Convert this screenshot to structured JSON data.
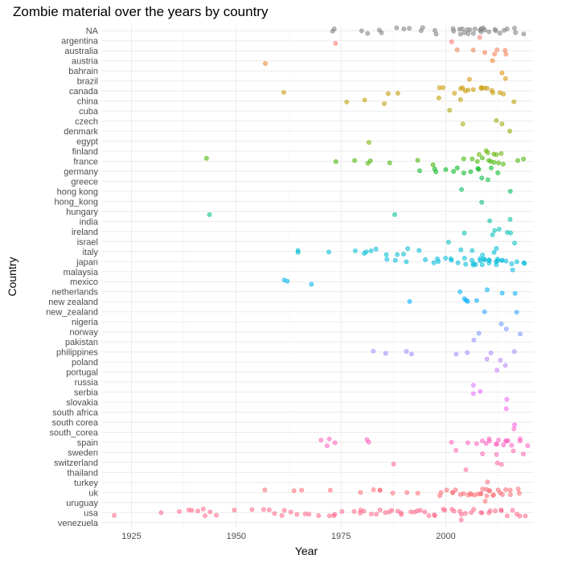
{
  "chart_data": {
    "type": "scatter",
    "title": "Zombie material over the years by country",
    "xlabel": "Year",
    "ylabel": "Country",
    "xlim": [
      1918,
      2021
    ],
    "xticks": [
      1925,
      1950,
      1975,
      2000
    ],
    "grid": true,
    "legend": "none",
    "categories": [
      "NA",
      "argentina",
      "australia",
      "austria",
      "bahrain",
      "brazil",
      "canada",
      "china",
      "cuba",
      "czech",
      "denmark",
      "egypt",
      "finland",
      "france",
      "germany",
      "greece",
      "hong kong",
      "hong_kong",
      "hungary",
      "india",
      "ireland",
      "israel",
      "italy",
      "japan",
      "malaysia",
      "mexico",
      "netherlands",
      "new zealand",
      "new_zealand",
      "nigeria",
      "norway",
      "pakistan",
      "philippines",
      "poland",
      "portugal",
      "russia",
      "serbia",
      "slovakia",
      "south africa",
      "south corea",
      "south_corea",
      "spain",
      "sweden",
      "switzerland",
      "thailand",
      "turkey",
      "uk",
      "uruguay",
      "usa",
      "venezuela"
    ],
    "colors": [
      "#808080",
      "#F8766D",
      "#F27D52",
      "#EA842F",
      "#E18A00",
      "#D59100",
      "#C99800",
      "#BC9D00",
      "#AEA200",
      "#9FA700",
      "#8FAB00",
      "#7CAE00",
      "#63B200",
      "#45B500",
      "#00B81F",
      "#00BA42",
      "#00BC5E",
      "#00BE76",
      "#00BF8C",
      "#00C0A0",
      "#00C1B2",
      "#00C0C3",
      "#00BDD3",
      "#00BBDA",
      "#00B8E5",
      "#00B4EF",
      "#00B0F6",
      "#00ABFD",
      "#35A2FF",
      "#619CFF",
      "#7C98FF",
      "#9590FF",
      "#A88AFF",
      "#B983FF",
      "#C77CFF",
      "#D575FE",
      "#E16BF9",
      "#EB64F1",
      "#F35EE9",
      "#F95BDD",
      "#FD5ECF",
      "#FF61C3",
      "#FF64B4",
      "#FF67A4",
      "#FF6A95",
      "#FF6C83",
      "#FD6E76",
      "#FB7174",
      "#FF6A8B",
      "#FF6A8B"
    ],
    "points": [
      [
        "NA",
        [
          1973,
          1974,
          1980,
          1982,
          1984,
          1985,
          1988,
          1990,
          1991,
          1994,
          1995,
          1997,
          1998,
          2001,
          2002,
          2003,
          2004,
          2004,
          2005,
          2005,
          2006,
          2006,
          2007,
          2007,
          2008,
          2008,
          2009,
          2009,
          2010,
          2010,
          2011,
          2012,
          2013,
          2014,
          2015,
          2016,
          2017,
          2018
        ]
      ],
      [
        "argentina",
        [
          1973,
          2001,
          2008
        ]
      ],
      [
        "australia",
        [
          2003,
          2007,
          2009,
          2012,
          2013,
          2014,
          2015
        ]
      ],
      [
        "austria",
        [
          1957,
          2011
        ]
      ],
      [
        "bahrain",
        [
          2014
        ]
      ],
      [
        "brazil",
        [
          2005,
          2015
        ]
      ],
      [
        "canada",
        [
          1961,
          1986,
          1989,
          1999,
          2000,
          2002,
          2003,
          2004,
          2005,
          2006,
          2007,
          2008,
          2009,
          2009,
          2010,
          2011,
          2012,
          2013,
          2014
        ]
      ],
      [
        "china",
        [
          1976,
          1981,
          1986,
          1999,
          2004,
          2017
        ]
      ],
      [
        "cuba",
        [
          2001
        ]
      ],
      [
        "czech",
        [
          2004,
          2012,
          2014
        ]
      ],
      [
        "denmark",
        [
          2015
        ]
      ],
      [
        "egypt",
        [
          1981
        ]
      ],
      [
        "finland",
        [
          2008,
          2009,
          2010,
          2011,
          2012,
          2013
        ]
      ],
      [
        "france",
        [
          1943,
          1973,
          1978,
          1981,
          1982,
          1986,
          1994,
          1997,
          2004,
          2006,
          2008,
          2009,
          2010,
          2011,
          2012,
          2013,
          2014,
          2017,
          2018
        ]
      ],
      [
        "germany",
        [
          1994,
          1997,
          1998,
          2000,
          2002,
          2003,
          2005,
          2006,
          2007,
          2008,
          2011,
          2013
        ]
      ],
      [
        "greece",
        [
          2008,
          2010
        ]
      ],
      [
        "hong kong",
        [
          2004,
          2015
        ]
      ],
      [
        "hong_kong",
        [
          2009
        ]
      ],
      [
        "hungary",
        [
          1943,
          1988
        ]
      ],
      [
        "india",
        [
          2010,
          2016
        ]
      ],
      [
        "ireland",
        [
          2005,
          2011,
          2012,
          2013,
          2014,
          2015
        ]
      ],
      [
        "israel",
        [
          2001,
          2017
        ]
      ],
      [
        "italy",
        [
          1964,
          1965,
          1972,
          1979,
          1980,
          1981,
          1982,
          1984,
          1986,
          1988,
          1990,
          1991,
          1993,
          2004,
          2007,
          2009,
          2011,
          2012
        ]
      ],
      [
        "japan",
        [
          1986,
          1988,
          1991,
          1995,
          1997,
          1998,
          1999,
          2000,
          2001,
          2002,
          2003,
          2004,
          2005,
          2006,
          2006,
          2007,
          2007,
          2008,
          2008,
          2009,
          2009,
          2010,
          2010,
          2011,
          2011,
          2012,
          2012,
          2013,
          2013,
          2014,
          2014,
          2015,
          2016,
          2017,
          2018,
          2019
        ]
      ],
      [
        "malaysia",
        [
          2016
        ]
      ],
      [
        "mexico",
        [
          1961,
          1962,
          1968
        ]
      ],
      [
        "netherlands",
        [
          2004,
          2010,
          2013,
          2017
        ]
      ],
      [
        "new zealand",
        [
          1992,
          2004,
          2005,
          2006,
          2007
        ]
      ],
      [
        "new_zealand",
        [
          2010,
          2017
        ]
      ],
      [
        "nigeria",
        [
          2014
        ]
      ],
      [
        "norway",
        [
          2008,
          2014,
          2017
        ]
      ],
      [
        "pakistan",
        [
          2006
        ]
      ],
      [
        "philippines",
        [
          1983,
          1985,
          1990,
          1992,
          2003,
          2005,
          2011,
          2017
        ]
      ],
      [
        "poland",
        [
          2010,
          2013,
          2015
        ]
      ],
      [
        "portugal",
        [
          2012
        ]
      ],
      [
        "russia",
        [
          2007
        ]
      ],
      [
        "serbia",
        [
          2007,
          2008
        ]
      ],
      [
        "slovakia",
        [
          2014
        ]
      ],
      [
        "south africa",
        [
          2015
        ]
      ],
      [
        "south corea",
        [
          2016
        ]
      ],
      [
        "south_corea",
        [
          2016
        ]
      ],
      [
        "spain",
        [
          1971,
          1972,
          1973,
          1974,
          1981,
          1982,
          2002,
          2006,
          2007,
          2008,
          2009,
          2010,
          2011,
          2012,
          2012,
          2013,
          2013,
          2014,
          2014,
          2015,
          2016,
          2017,
          2018,
          2019
        ]
      ],
      [
        "sweden",
        [
          2002,
          2009,
          2012,
          2016,
          2018
        ]
      ],
      [
        "switzerland",
        [
          1987,
          2012,
          2014
        ]
      ],
      [
        "thailand",
        [
          2004
        ]
      ],
      [
        "turkey",
        [
          2010
        ]
      ],
      [
        "uk",
        [
          1957,
          1964,
          1966,
          1973,
          1980,
          1983,
          1984,
          1985,
          1988,
          1991,
          1994,
          1998,
          1999,
          2000,
          2001,
          2002,
          2003,
          2004,
          2004,
          2005,
          2006,
          2006,
          2007,
          2007,
          2008,
          2008,
          2009,
          2009,
          2010,
          2010,
          2011,
          2011,
          2012,
          2012,
          2013,
          2013,
          2014,
          2015,
          2016,
          2017,
          2018
        ]
      ],
      [
        "uruguay",
        [
          2010
        ]
      ],
      [
        "usa",
        [
          1921,
          1932,
          1936,
          1939,
          1940,
          1941,
          1942,
          1943,
          1944,
          1945,
          1950,
          1953,
          1956,
          1958,
          1959,
          1961,
          1962,
          1963,
          1964,
          1966,
          1968,
          1970,
          1972,
          1973,
          1974,
          1976,
          1978,
          1979,
          1980,
          1981,
          1982,
          1983,
          1984,
          1985,
          1986,
          1987,
          1988,
          1989,
          1990,
          1991,
          1992,
          1993,
          1994,
          1995,
          1996,
          1997,
          1998,
          1999,
          2000,
          2001,
          2002,
          2003,
          2004,
          2005,
          2006,
          2007,
          2008,
          2009,
          2010,
          2011,
          2012,
          2013,
          2014,
          2015,
          2016,
          2017,
          2018,
          2019
        ]
      ],
      [
        "venezuela",
        [
          2003
        ]
      ]
    ]
  }
}
